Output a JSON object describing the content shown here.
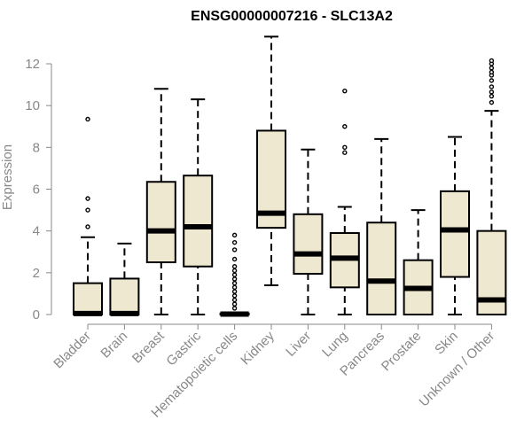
{
  "chart_data": {
    "type": "boxplot",
    "title": "ENSG00000007216 - SLC13A2",
    "xlabel": "",
    "ylabel": "Expression",
    "ylim": [
      0,
      12.4
    ],
    "yticks": [
      0,
      2,
      4,
      6,
      8,
      10,
      12
    ],
    "grid": false,
    "box_fill": "#efe8d0",
    "box_stroke": "#000000",
    "axis_color": "#888888",
    "categories": [
      "Bladder",
      "Brain",
      "Breast",
      "Gastric",
      "Hematopoietic cells",
      "Kidney",
      "Liver",
      "Lung",
      "Pancreas",
      "Prostate",
      "Skin",
      "Unknown / Other"
    ],
    "boxes": [
      {
        "category": "Bladder",
        "whisker_low": 0,
        "q1": 0,
        "median": 0.05,
        "q3": 1.5,
        "whisker_high": 3.7,
        "outliers": [
          4.2,
          5.0,
          5.55,
          9.35
        ]
      },
      {
        "category": "Brain",
        "whisker_low": 0,
        "q1": 0,
        "median": 0.05,
        "q3": 1.72,
        "whisker_high": 3.4,
        "outliers": []
      },
      {
        "category": "Breast",
        "whisker_low": 0,
        "q1": 2.5,
        "median": 4.0,
        "q3": 6.35,
        "whisker_high": 10.8,
        "outliers": []
      },
      {
        "category": "Gastric",
        "whisker_low": 0,
        "q1": 2.3,
        "median": 4.2,
        "q3": 6.65,
        "whisker_high": 10.3,
        "outliers": []
      },
      {
        "category": "Hematopoietic cells",
        "whisker_low": 0,
        "q1": 0,
        "median": 0.02,
        "q3": 0.05,
        "whisker_high": 0.1,
        "outliers": [
          0.3,
          0.5,
          0.7,
          0.9,
          1.1,
          1.3,
          1.5,
          1.7,
          1.9,
          2.1,
          2.3,
          2.65,
          3.1,
          3.45,
          3.8
        ]
      },
      {
        "category": "Kidney",
        "whisker_low": 1.4,
        "q1": 4.15,
        "median": 4.85,
        "q3": 8.8,
        "whisker_high": 13.3,
        "outliers": []
      },
      {
        "category": "Liver",
        "whisker_low": 0,
        "q1": 1.95,
        "median": 2.9,
        "q3": 4.8,
        "whisker_high": 7.9,
        "outliers": []
      },
      {
        "category": "Lung",
        "whisker_low": 0,
        "q1": 1.3,
        "median": 2.7,
        "q3": 3.9,
        "whisker_high": 5.15,
        "outliers": [
          7.75,
          8.0,
          9.0,
          10.7
        ]
      },
      {
        "category": "Pancreas",
        "whisker_low": 0,
        "q1": 0,
        "median": 1.6,
        "q3": 4.4,
        "whisker_high": 8.4,
        "outliers": []
      },
      {
        "category": "Prostate",
        "whisker_low": 0,
        "q1": 0,
        "median": 1.25,
        "q3": 2.6,
        "whisker_high": 5.0,
        "outliers": []
      },
      {
        "category": "Skin",
        "whisker_low": 0,
        "q1": 1.8,
        "median": 4.05,
        "q3": 5.9,
        "whisker_high": 8.5,
        "outliers": []
      },
      {
        "category": "Unknown / Other",
        "whisker_low": 0,
        "q1": 0,
        "median": 0.7,
        "q3": 4.0,
        "whisker_high": 9.75,
        "outliers": [
          10.15,
          10.45,
          10.65,
          10.9,
          11.2,
          11.45,
          11.6,
          11.8,
          12.0,
          12.15
        ]
      }
    ]
  }
}
